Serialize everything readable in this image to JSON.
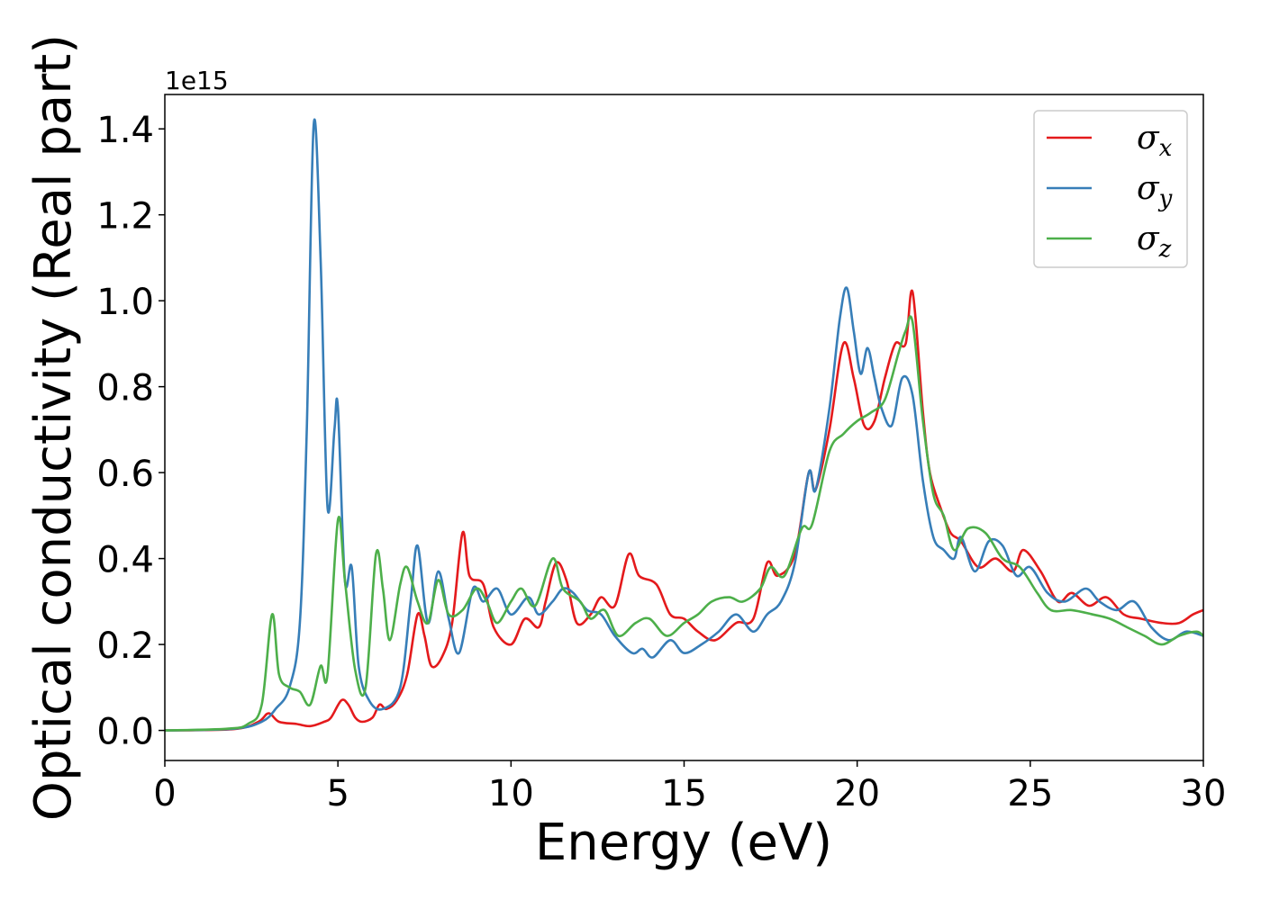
{
  "chart_data": {
    "type": "line",
    "xlabel": "Energy (eV)",
    "ylabel": "Optical conductivity (Real part)",
    "y_offset_label": "1e15",
    "xlim": [
      0,
      30
    ],
    "ylim": [
      -0.07,
      1.48
    ],
    "xticks": [
      0,
      5,
      10,
      15,
      20,
      25,
      30
    ],
    "xtick_labels": [
      "0",
      "5",
      "10",
      "15",
      "20",
      "25",
      "30"
    ],
    "yticks": [
      0.0,
      0.2,
      0.4,
      0.6,
      0.8,
      1.0,
      1.2,
      1.4
    ],
    "ytick_labels": [
      "0.0",
      "0.2",
      "0.4",
      "0.6",
      "0.8",
      "1.0",
      "1.2",
      "1.4"
    ],
    "grid": false,
    "legend_position": "top-right",
    "series": [
      {
        "name": "σx",
        "legend_base": "σ",
        "legend_sub": "x",
        "color": "#e41a1c",
        "points": [
          [
            0,
            0
          ],
          [
            2,
            0.003
          ],
          [
            2.7,
            0.02
          ],
          [
            3.0,
            0.04
          ],
          [
            3.3,
            0.02
          ],
          [
            3.8,
            0.015
          ],
          [
            4.2,
            0.01
          ],
          [
            4.6,
            0.02
          ],
          [
            4.8,
            0.03
          ],
          [
            5.1,
            0.07
          ],
          [
            5.3,
            0.06
          ],
          [
            5.5,
            0.03
          ],
          [
            5.7,
            0.02
          ],
          [
            6.0,
            0.03
          ],
          [
            6.2,
            0.06
          ],
          [
            6.4,
            0.05
          ],
          [
            6.7,
            0.07
          ],
          [
            7.0,
            0.13
          ],
          [
            7.3,
            0.27
          ],
          [
            7.5,
            0.22
          ],
          [
            7.7,
            0.15
          ],
          [
            8.0,
            0.17
          ],
          [
            8.3,
            0.25
          ],
          [
            8.6,
            0.46
          ],
          [
            8.8,
            0.36
          ],
          [
            9.2,
            0.34
          ],
          [
            9.5,
            0.24
          ],
          [
            10.0,
            0.2
          ],
          [
            10.4,
            0.26
          ],
          [
            10.8,
            0.24
          ],
          [
            11.0,
            0.3
          ],
          [
            11.3,
            0.39
          ],
          [
            11.6,
            0.35
          ],
          [
            11.9,
            0.25
          ],
          [
            12.3,
            0.27
          ],
          [
            12.6,
            0.31
          ],
          [
            13.0,
            0.29
          ],
          [
            13.4,
            0.41
          ],
          [
            13.7,
            0.36
          ],
          [
            14.2,
            0.34
          ],
          [
            14.6,
            0.27
          ],
          [
            15.0,
            0.26
          ],
          [
            15.4,
            0.23
          ],
          [
            15.9,
            0.21
          ],
          [
            16.5,
            0.25
          ],
          [
            17.0,
            0.26
          ],
          [
            17.4,
            0.39
          ],
          [
            17.7,
            0.36
          ],
          [
            18.2,
            0.41
          ],
          [
            18.6,
            0.6
          ],
          [
            18.8,
            0.56
          ],
          [
            19.2,
            0.7
          ],
          [
            19.6,
            0.9
          ],
          [
            19.9,
            0.82
          ],
          [
            20.2,
            0.71
          ],
          [
            20.5,
            0.72
          ],
          [
            20.8,
            0.82
          ],
          [
            21.1,
            0.9
          ],
          [
            21.4,
            0.9
          ],
          [
            21.6,
            1.02
          ],
          [
            21.9,
            0.74
          ],
          [
            22.1,
            0.6
          ],
          [
            22.4,
            0.52
          ],
          [
            22.7,
            0.46
          ],
          [
            23.0,
            0.44
          ],
          [
            23.5,
            0.38
          ],
          [
            24.0,
            0.4
          ],
          [
            24.5,
            0.37
          ],
          [
            24.8,
            0.42
          ],
          [
            25.3,
            0.37
          ],
          [
            25.8,
            0.3
          ],
          [
            26.2,
            0.32
          ],
          [
            26.7,
            0.29
          ],
          [
            27.2,
            0.31
          ],
          [
            27.7,
            0.27
          ],
          [
            28.2,
            0.26
          ],
          [
            28.8,
            0.25
          ],
          [
            29.3,
            0.25
          ],
          [
            29.7,
            0.27
          ],
          [
            30.0,
            0.28
          ]
        ]
      },
      {
        "name": "σy",
        "legend_base": "σ",
        "legend_sub": "y",
        "color": "#377eb8",
        "points": [
          [
            0,
            0
          ],
          [
            2,
            0.004
          ],
          [
            2.8,
            0.02
          ],
          [
            3.2,
            0.05
          ],
          [
            3.6,
            0.1
          ],
          [
            3.9,
            0.25
          ],
          [
            4.1,
            0.7
          ],
          [
            4.3,
            1.41
          ],
          [
            4.5,
            1.1
          ],
          [
            4.7,
            0.52
          ],
          [
            4.9,
            0.7
          ],
          [
            5.0,
            0.75
          ],
          [
            5.2,
            0.35
          ],
          [
            5.4,
            0.38
          ],
          [
            5.6,
            0.15
          ],
          [
            5.9,
            0.07
          ],
          [
            6.3,
            0.05
          ],
          [
            6.8,
            0.1
          ],
          [
            7.1,
            0.3
          ],
          [
            7.3,
            0.43
          ],
          [
            7.6,
            0.25
          ],
          [
            7.9,
            0.37
          ],
          [
            8.2,
            0.26
          ],
          [
            8.5,
            0.18
          ],
          [
            8.9,
            0.33
          ],
          [
            9.2,
            0.3
          ],
          [
            9.6,
            0.33
          ],
          [
            10.0,
            0.27
          ],
          [
            10.5,
            0.31
          ],
          [
            10.8,
            0.27
          ],
          [
            11.2,
            0.3
          ],
          [
            11.5,
            0.33
          ],
          [
            11.8,
            0.32
          ],
          [
            12.2,
            0.28
          ],
          [
            12.6,
            0.27
          ],
          [
            13.0,
            0.22
          ],
          [
            13.5,
            0.18
          ],
          [
            13.8,
            0.19
          ],
          [
            14.1,
            0.17
          ],
          [
            14.6,
            0.21
          ],
          [
            15.0,
            0.18
          ],
          [
            15.5,
            0.2
          ],
          [
            16.0,
            0.23
          ],
          [
            16.5,
            0.27
          ],
          [
            17.0,
            0.23
          ],
          [
            17.4,
            0.27
          ],
          [
            17.8,
            0.3
          ],
          [
            18.2,
            0.39
          ],
          [
            18.6,
            0.6
          ],
          [
            18.8,
            0.56
          ],
          [
            19.2,
            0.75
          ],
          [
            19.5,
            0.96
          ],
          [
            19.7,
            1.03
          ],
          [
            19.9,
            0.93
          ],
          [
            20.1,
            0.83
          ],
          [
            20.3,
            0.89
          ],
          [
            20.5,
            0.82
          ],
          [
            20.7,
            0.75
          ],
          [
            21.0,
            0.71
          ],
          [
            21.3,
            0.82
          ],
          [
            21.6,
            0.78
          ],
          [
            21.9,
            0.58
          ],
          [
            22.2,
            0.45
          ],
          [
            22.5,
            0.42
          ],
          [
            22.8,
            0.4
          ],
          [
            23.0,
            0.45
          ],
          [
            23.4,
            0.37
          ],
          [
            23.8,
            0.44
          ],
          [
            24.2,
            0.43
          ],
          [
            24.6,
            0.36
          ],
          [
            25.0,
            0.38
          ],
          [
            25.5,
            0.32
          ],
          [
            26.0,
            0.3
          ],
          [
            26.6,
            0.33
          ],
          [
            27.0,
            0.3
          ],
          [
            27.5,
            0.28
          ],
          [
            28.0,
            0.3
          ],
          [
            28.5,
            0.24
          ],
          [
            29.0,
            0.21
          ],
          [
            29.5,
            0.23
          ],
          [
            30.0,
            0.22
          ]
        ]
      },
      {
        "name": "σz",
        "legend_base": "σ",
        "legend_sub": "z",
        "color": "#4daf4a",
        "points": [
          [
            0,
            0
          ],
          [
            1.8,
            0.004
          ],
          [
            2.4,
            0.015
          ],
          [
            2.8,
            0.06
          ],
          [
            3.1,
            0.27
          ],
          [
            3.3,
            0.13
          ],
          [
            3.6,
            0.1
          ],
          [
            3.9,
            0.09
          ],
          [
            4.2,
            0.06
          ],
          [
            4.5,
            0.15
          ],
          [
            4.7,
            0.13
          ],
          [
            5.0,
            0.49
          ],
          [
            5.2,
            0.35
          ],
          [
            5.5,
            0.14
          ],
          [
            5.8,
            0.1
          ],
          [
            6.1,
            0.41
          ],
          [
            6.3,
            0.33
          ],
          [
            6.5,
            0.21
          ],
          [
            6.8,
            0.34
          ],
          [
            7.0,
            0.38
          ],
          [
            7.3,
            0.3
          ],
          [
            7.6,
            0.25
          ],
          [
            7.9,
            0.35
          ],
          [
            8.2,
            0.27
          ],
          [
            8.6,
            0.28
          ],
          [
            9.0,
            0.33
          ],
          [
            9.3,
            0.3
          ],
          [
            9.6,
            0.25
          ],
          [
            10.0,
            0.3
          ],
          [
            10.3,
            0.33
          ],
          [
            10.7,
            0.29
          ],
          [
            11.2,
            0.4
          ],
          [
            11.5,
            0.33
          ],
          [
            12.0,
            0.3
          ],
          [
            12.3,
            0.26
          ],
          [
            12.7,
            0.28
          ],
          [
            13.1,
            0.22
          ],
          [
            13.6,
            0.25
          ],
          [
            14.0,
            0.26
          ],
          [
            14.5,
            0.22
          ],
          [
            15.0,
            0.25
          ],
          [
            15.4,
            0.27
          ],
          [
            15.8,
            0.3
          ],
          [
            16.3,
            0.31
          ],
          [
            16.7,
            0.3
          ],
          [
            17.2,
            0.33
          ],
          [
            17.5,
            0.38
          ],
          [
            17.9,
            0.36
          ],
          [
            18.4,
            0.47
          ],
          [
            18.7,
            0.48
          ],
          [
            19.2,
            0.65
          ],
          [
            19.6,
            0.69
          ],
          [
            20.0,
            0.72
          ],
          [
            20.4,
            0.74
          ],
          [
            20.8,
            0.77
          ],
          [
            21.2,
            0.88
          ],
          [
            21.4,
            0.93
          ],
          [
            21.6,
            0.95
          ],
          [
            21.9,
            0.72
          ],
          [
            22.2,
            0.55
          ],
          [
            22.5,
            0.5
          ],
          [
            22.8,
            0.42
          ],
          [
            23.2,
            0.47
          ],
          [
            23.7,
            0.46
          ],
          [
            24.2,
            0.4
          ],
          [
            24.7,
            0.38
          ],
          [
            25.2,
            0.32
          ],
          [
            25.6,
            0.28
          ],
          [
            26.2,
            0.28
          ],
          [
            26.8,
            0.27
          ],
          [
            27.3,
            0.26
          ],
          [
            27.8,
            0.24
          ],
          [
            28.3,
            0.22
          ],
          [
            28.8,
            0.2
          ],
          [
            29.3,
            0.22
          ],
          [
            29.8,
            0.23
          ],
          [
            30.0,
            0.22
          ]
        ]
      }
    ]
  }
}
